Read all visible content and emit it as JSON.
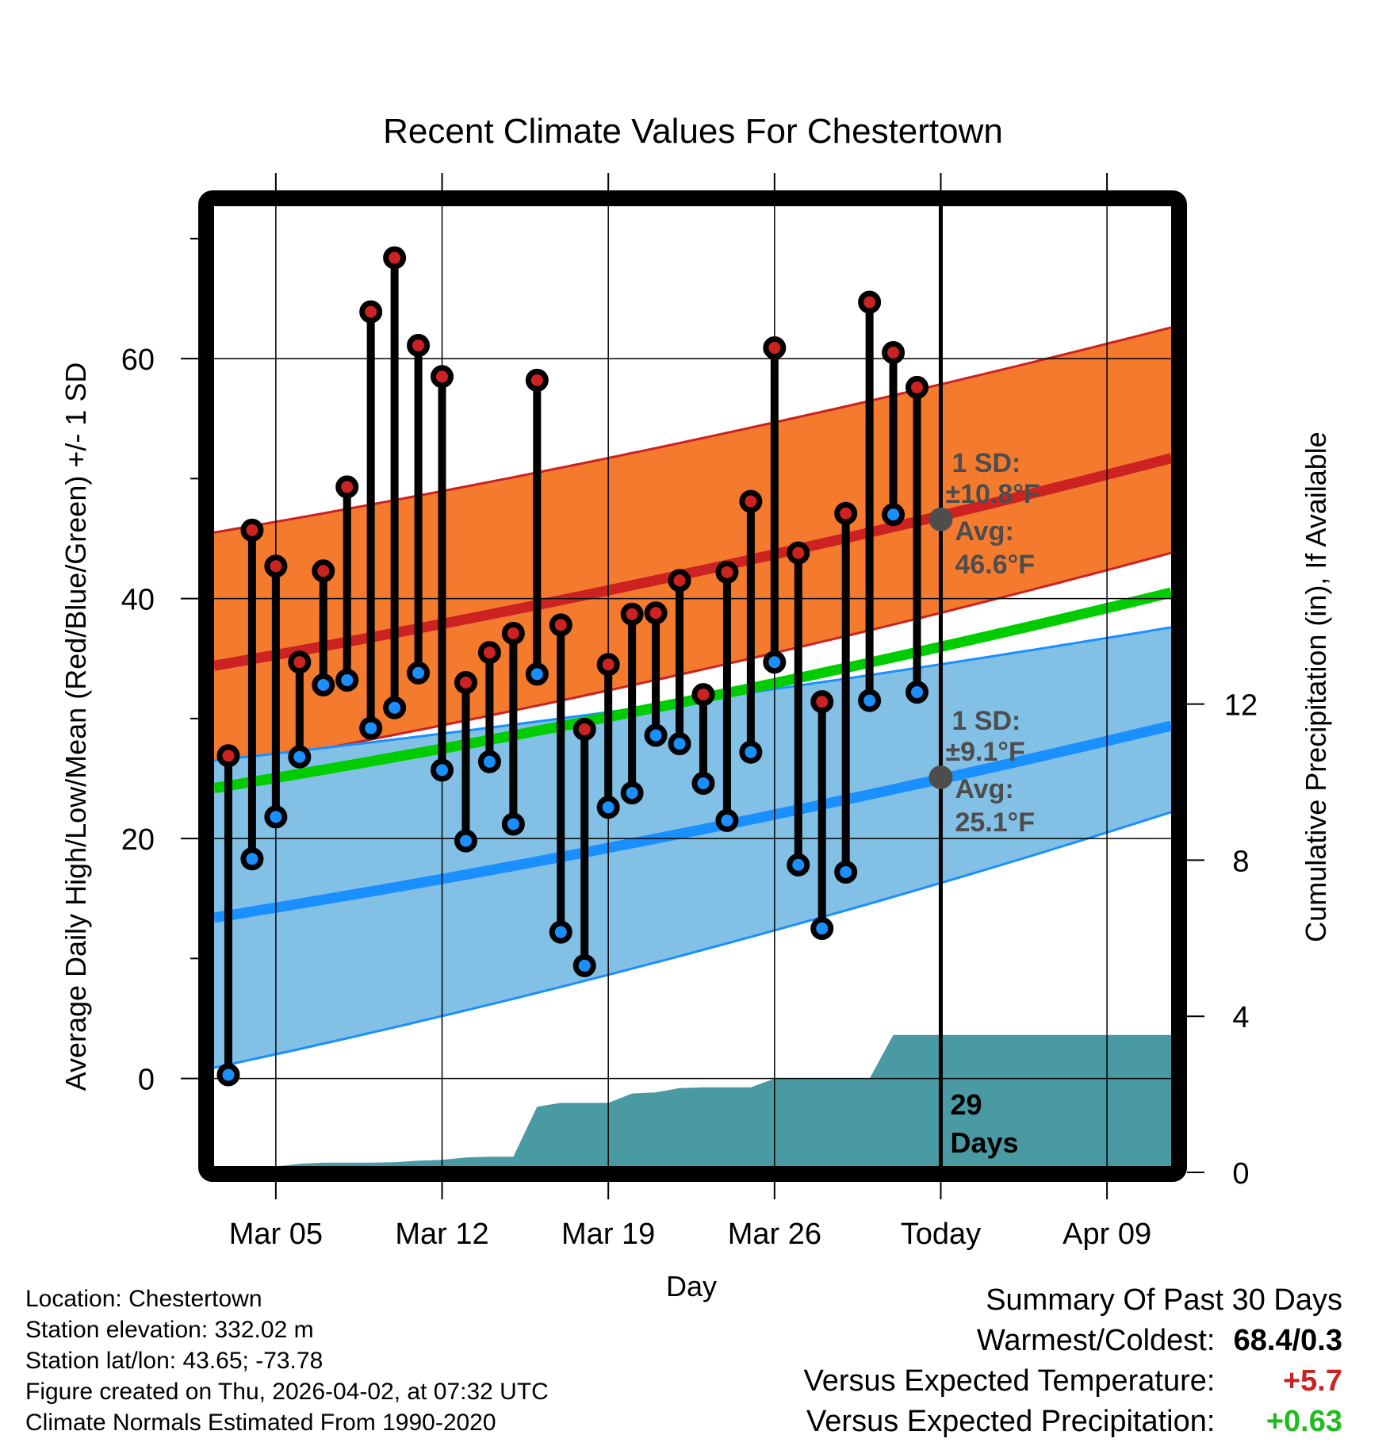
{
  "chart_data": {
    "type": "line",
    "title": "Recent Climate Values For Chestertown",
    "xlabel": "Day",
    "ylabel": "Average Daily High/Low/Mean (Red/Blue/Green) +/- 1 SD",
    "y2label": "Cumulative Precipitation (in), If Available",
    "ylim": [
      -7.3,
      72.7
    ],
    "y2lim": [
      0,
      16
    ],
    "yticks": [
      0,
      20,
      40,
      60
    ],
    "yminor_ticks": [
      10,
      30,
      50,
      70
    ],
    "y2ticks": [
      0,
      4,
      8,
      12
    ],
    "x_range_days": [
      2.4,
      42.7
    ],
    "xticks": [
      {
        "day": 5,
        "label": "Mar 05"
      },
      {
        "day": 12,
        "label": "Mar 12"
      },
      {
        "day": 19,
        "label": "Mar 19"
      },
      {
        "day": 26,
        "label": "Mar 26"
      },
      {
        "day": 33,
        "label": "Today"
      },
      {
        "day": 40,
        "label": "Apr 09"
      }
    ],
    "grid": true,
    "today_day": 33,
    "days_label_number": "29",
    "days_label_text": "Days",
    "observations": {
      "days": [
        3,
        4,
        5,
        6,
        7,
        8,
        9,
        10,
        11,
        12,
        13,
        14,
        15,
        16,
        17,
        18,
        19,
        20,
        21,
        22,
        23,
        24,
        25,
        26,
        27,
        28,
        29,
        30,
        31,
        32
      ],
      "dates": [
        "Mar 03",
        "Mar 04",
        "Mar 05",
        "Mar 06",
        "Mar 07",
        "Mar 08",
        "Mar 09",
        "Mar 10",
        "Mar 11",
        "Mar 12",
        "Mar 13",
        "Mar 14",
        "Mar 15",
        "Mar 16",
        "Mar 17",
        "Mar 18",
        "Mar 19",
        "Mar 20",
        "Mar 21",
        "Mar 22",
        "Mar 23",
        "Mar 24",
        "Mar 25",
        "Mar 26",
        "Mar 27",
        "Mar 28",
        "Mar 29",
        "Mar 30",
        "Mar 31",
        "Apr 01"
      ],
      "high": [
        26.9,
        45.7,
        42.7,
        34.7,
        42.3,
        49.3,
        63.9,
        68.4,
        61.1,
        58.5,
        33.0,
        35.5,
        37.1,
        58.2,
        37.8,
        29.1,
        34.5,
        38.7,
        38.8,
        41.5,
        32.0,
        42.2,
        48.1,
        60.9,
        43.8,
        31.4,
        47.1,
        64.7,
        60.5,
        57.6
      ],
      "low": [
        0.3,
        18.3,
        21.8,
        26.8,
        32.8,
        33.2,
        29.2,
        30.9,
        33.8,
        25.7,
        19.8,
        26.4,
        21.2,
        33.7,
        12.2,
        9.4,
        22.6,
        23.8,
        28.6,
        27.9,
        24.6,
        21.5,
        27.2,
        34.7,
        17.8,
        12.5,
        17.2,
        31.5,
        47.0,
        32.2
      ]
    },
    "normals": {
      "days": [
        2.4,
        42.7
      ],
      "avg_high": [
        34.4,
        51.7
      ],
      "avg_high_plus_sd": [
        45.5,
        62.6
      ],
      "avg_high_minus_sd": [
        25.8,
        43.8
      ],
      "avg_mean": [
        24.2,
        40.5
      ],
      "avg_low": [
        13.4,
        29.4
      ],
      "avg_low_plus_sd": [
        26.5,
        37.6
      ],
      "avg_low_minus_sd": [
        0.9,
        22.2
      ]
    },
    "precipitation": {
      "series_name": "Cumulative Precipitation (in)",
      "days": [
        2.4,
        4.0,
        5.0,
        6.0,
        7.0,
        8.0,
        9.0,
        10.0,
        11.0,
        12.0,
        13.0,
        14.0,
        15.0,
        16.0,
        17.0,
        18.0,
        19.0,
        20.0,
        21.0,
        22.0,
        23.0,
        24.0,
        25.0,
        26.0,
        27.0,
        28.0,
        29.0,
        30.0,
        31.0,
        33.0,
        42.7
      ],
      "cumulative": [
        0.0,
        0.0,
        0.15,
        0.22,
        0.25,
        0.25,
        0.25,
        0.26,
        0.3,
        0.32,
        0.38,
        0.4,
        0.4,
        1.68,
        1.78,
        1.78,
        1.78,
        2.02,
        2.05,
        2.16,
        2.18,
        2.18,
        2.18,
        2.4,
        2.4,
        2.4,
        2.4,
        2.4,
        3.52,
        3.52,
        3.52
      ]
    },
    "annotations": {
      "high": {
        "sd_label": "1 SD:",
        "sd_value": "±10.8°F",
        "avg_label": "Avg:",
        "avg_value": "46.6°F",
        "avg": 46.6
      },
      "low": {
        "sd_label": "1 SD:",
        "sd_value": "±9.1°F",
        "avg_label": "Avg:",
        "avg_value": "25.1°F",
        "avg": 25.1
      }
    },
    "colors": {
      "high_band": "#f47a2e",
      "high_line": "#cc2222",
      "low_band": "#82c0e6",
      "low_line": "#1a8fff",
      "mean_line": "#00cc00",
      "precip": "#4a9aa3",
      "high_marker": "#cc2222",
      "low_marker": "#1a8fff",
      "annotation": "#4d4d4d"
    }
  },
  "info": {
    "location": "Location: Chestertown",
    "elevation": "Station elevation: 332.02 m",
    "latlon": "Station lat/lon: 43.65; -73.78",
    "created": "Figure created on Thu, 2026-04-02, at 07:32 UTC",
    "normals": "Climate Normals Estimated From 1990-2020"
  },
  "summary": {
    "title": "Summary Of Past 30 Days",
    "warmest_coldest_label": "Warmest/Coldest:",
    "warmest_coldest_value": "68.4/0.3",
    "temp_label": "Versus Expected Temperature:",
    "temp_value": "+5.7",
    "temp_color": "#cc2222",
    "precip_label": "Versus Expected Precipitation:",
    "precip_value": "+0.63",
    "precip_color": "#22bb22"
  }
}
